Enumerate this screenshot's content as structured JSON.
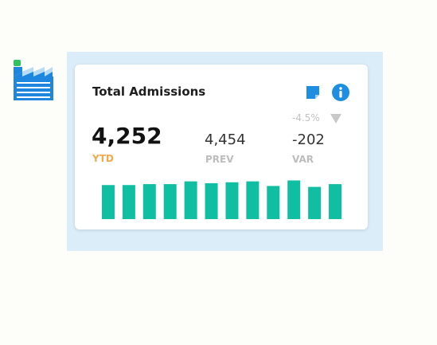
{
  "icons": {
    "factory": "factory-icon",
    "note": "sticky-note-icon",
    "info": "info-icon",
    "trend": "down-arrow-icon"
  },
  "colors": {
    "accent_blue": "#1e8ee0",
    "factory_blue": "#1f86e0",
    "factory_chimney_light": "#b9dcf6",
    "status_green": "#2ec35d",
    "bar_teal": "#10bfa2",
    "ytd_label": "#f3a94b",
    "panel_bg": "#daedf8"
  },
  "card": {
    "title": "Total Admissions",
    "change_pct": "-4.5%",
    "ytd": {
      "value": "4,252",
      "label": "YTD"
    },
    "prev": {
      "value": "4,454",
      "label": "PREV"
    },
    "variance": {
      "value": "-202",
      "label": "VAR"
    }
  },
  "chart_data": {
    "type": "bar",
    "values": [
      37,
      37,
      38,
      38,
      41,
      39,
      40,
      41,
      36,
      42,
      35,
      38
    ],
    "ylim": [
      0,
      45
    ],
    "grid": false
  }
}
